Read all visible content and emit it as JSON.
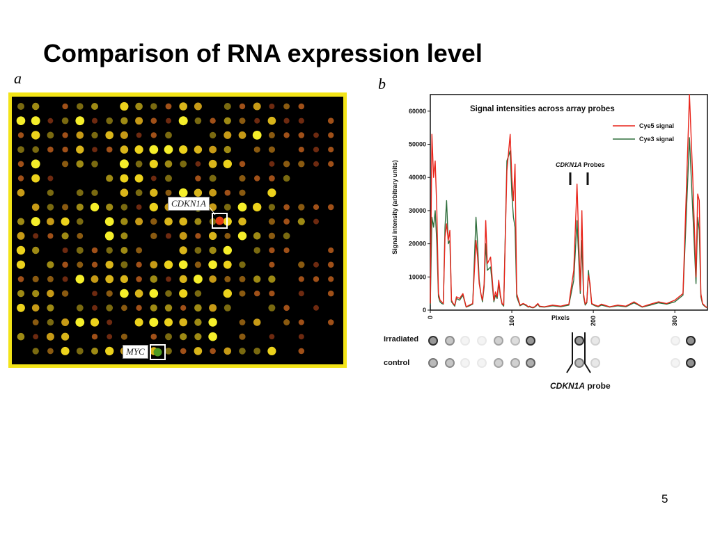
{
  "slide": {
    "title": "Comparison of RNA expression level",
    "page_number": "5"
  },
  "panel_a": {
    "letter": "a",
    "labels": {
      "cdkn1a": "CDKN1A",
      "myc": "MYC"
    },
    "colors": {
      "frame": "#f3e418",
      "background": "#000000",
      "highlight_box": "#ffffff"
    }
  },
  "panel_b": {
    "letter": "b",
    "rows": {
      "irradiated": "Irradiated",
      "control": "control"
    },
    "probe_caption_gene": "CDKN1A",
    "probe_caption_suffix": " probe"
  },
  "chart_data": {
    "type": "line",
    "title": "Signal intensities across array probes",
    "xlabel": "Pixels",
    "ylabel": "Signal intensity (arbitrary units)",
    "xlim": [
      0,
      340
    ],
    "ylim": [
      0,
      65000
    ],
    "x_ticks": [
      0,
      100,
      200,
      300
    ],
    "y_ticks": [
      0,
      10000,
      20000,
      30000,
      40000,
      50000,
      60000
    ],
    "legend_position": "top-right",
    "annotation": {
      "gene": "CDKN1A",
      "text": " Probes"
    },
    "series": [
      {
        "name": "Cye5 signal",
        "color": "#e8241a",
        "x": [
          0,
          2,
          4,
          6,
          8,
          10,
          12,
          14,
          16,
          18,
          20,
          22,
          24,
          26,
          28,
          30,
          32,
          36,
          40,
          44,
          48,
          52,
          56,
          58,
          60,
          62,
          64,
          66,
          68,
          70,
          74,
          78,
          80,
          82,
          84,
          86,
          88,
          90,
          94,
          98,
          100,
          102,
          104,
          106,
          110,
          114,
          118,
          120,
          122,
          124,
          126,
          128,
          130,
          132,
          134,
          140,
          150,
          160,
          170,
          176,
          180,
          184,
          186,
          188,
          190,
          192,
          194,
          196,
          198,
          202,
          206,
          210,
          220,
          230,
          240,
          250,
          260,
          270,
          280,
          290,
          300,
          310,
          318,
          322,
          326,
          328,
          330,
          332,
          334,
          336,
          338,
          340
        ],
        "values": [
          2000,
          53000,
          40000,
          45000,
          30000,
          5000,
          3000,
          2500,
          2000,
          22000,
          26000,
          21000,
          24000,
          3000,
          2000,
          1500,
          4000,
          3500,
          5000,
          1000,
          1500,
          2000,
          21000,
          16000,
          8000,
          5000,
          3000,
          8000,
          27000,
          14000,
          16000,
          3000,
          5500,
          4000,
          9000,
          4500,
          2000,
          1500,
          42000,
          53000,
          40000,
          33000,
          44000,
          5000,
          1500,
          2000,
          1500,
          1000,
          1200,
          900,
          800,
          1000,
          1500,
          2000,
          1200,
          1000,
          1500,
          1200,
          1800,
          12000,
          38000,
          6000,
          30000,
          5000,
          1800,
          2500,
          10500,
          8000,
          2000,
          1500,
          1200,
          1800,
          1000,
          1500,
          1200,
          2500,
          1000,
          1800,
          2500,
          2000,
          3000,
          5000,
          65000,
          40000,
          10000,
          35000,
          33000,
          5000,
          2000,
          1500,
          1000,
          800
        ]
      },
      {
        "name": "Cye3 signal",
        "color": "#2f6e3c",
        "x": [
          0,
          2,
          4,
          6,
          8,
          10,
          12,
          14,
          16,
          18,
          20,
          22,
          24,
          26,
          28,
          30,
          32,
          36,
          40,
          44,
          48,
          52,
          56,
          58,
          60,
          62,
          64,
          66,
          68,
          70,
          74,
          78,
          80,
          82,
          84,
          86,
          88,
          90,
          94,
          98,
          100,
          102,
          104,
          106,
          110,
          114,
          118,
          120,
          122,
          124,
          126,
          128,
          130,
          132,
          134,
          140,
          150,
          160,
          170,
          176,
          180,
          184,
          186,
          188,
          190,
          192,
          194,
          196,
          198,
          202,
          206,
          210,
          220,
          230,
          240,
          250,
          260,
          270,
          280,
          290,
          300,
          310,
          318,
          322,
          326,
          328,
          330,
          332,
          334,
          336,
          338,
          340
        ],
        "values": [
          1500,
          28000,
          25000,
          30000,
          20000,
          4000,
          2500,
          2000,
          1800,
          25000,
          33000,
          20000,
          21000,
          2500,
          1800,
          1200,
          3500,
          3000,
          4500,
          900,
          1300,
          1800,
          28000,
          20000,
          9000,
          5000,
          2500,
          7000,
          20000,
          12000,
          13000,
          2500,
          4500,
          3500,
          8000,
          4000,
          1800,
          1200,
          45000,
          48000,
          35000,
          28000,
          25000,
          4000,
          1300,
          1800,
          1300,
          900,
          1000,
          800,
          700,
          900,
          1300,
          1800,
          1000,
          900,
          1300,
          1000,
          1500,
          9000,
          27000,
          5000,
          21000,
          4000,
          1500,
          2200,
          12000,
          7000,
          1800,
          1300,
          1000,
          1500,
          900,
          1300,
          1000,
          2200,
          900,
          1500,
          2200,
          1800,
          2500,
          4500,
          52000,
          30000,
          8000,
          28000,
          24000,
          4000,
          1800,
          1300,
          900,
          700
        ]
      }
    ]
  }
}
